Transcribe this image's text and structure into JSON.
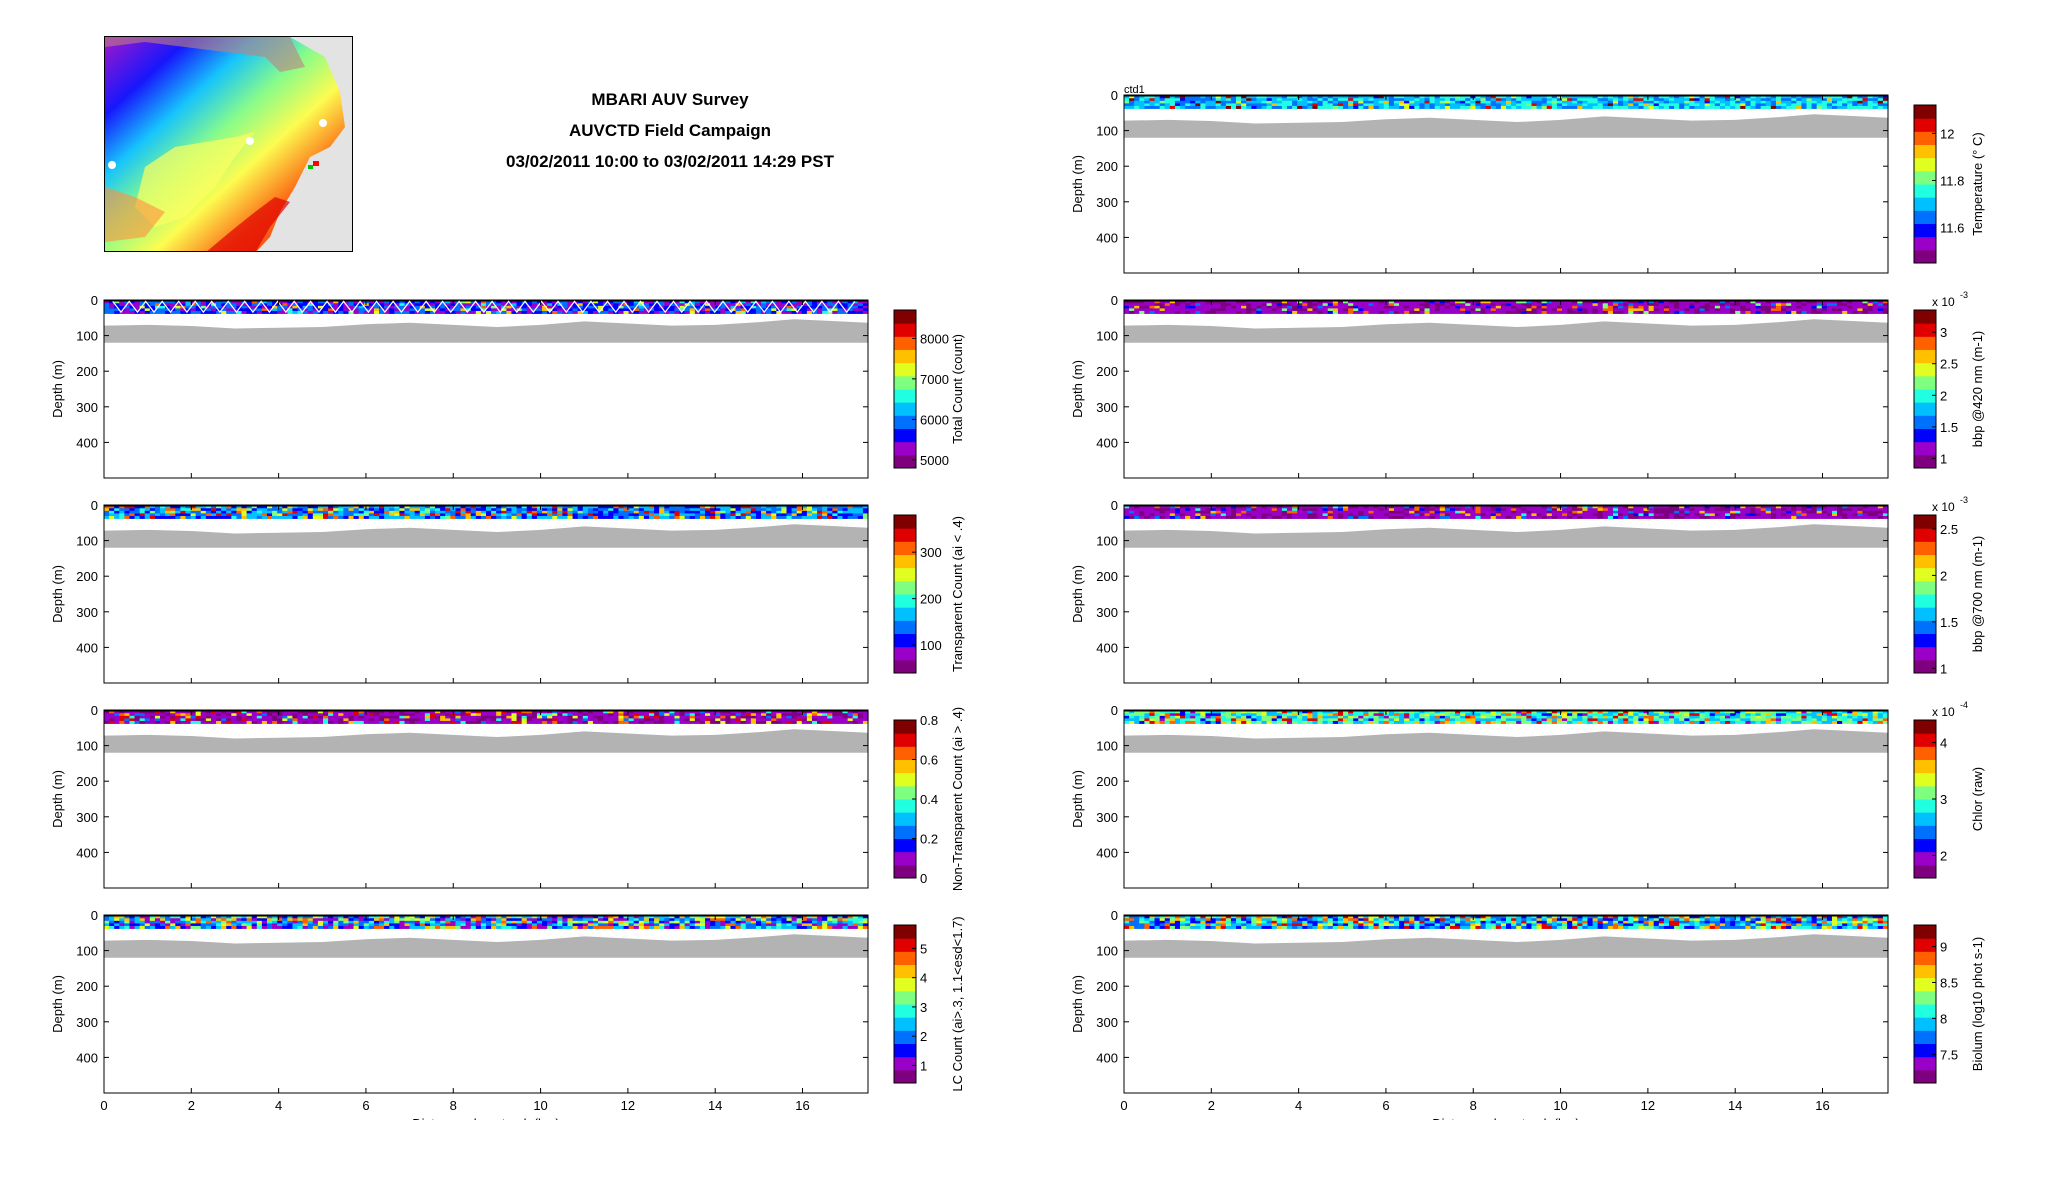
{
  "header": {
    "title_lines": [
      "MBARI AUV Survey",
      "AUVCTD Field Campaign",
      "03/02/2011 10:00 to 03/02/2011 14:29 PST"
    ]
  },
  "colors": {
    "terrain_fill": "#b3b3b3",
    "colormap_jet": [
      "#7f007f",
      "#9b00c8",
      "#0000ff",
      "#0070ff",
      "#00c0ff",
      "#20ffe0",
      "#7fff7f",
      "#e0ff20",
      "#ffc000",
      "#ff6000",
      "#e00000",
      "#800000"
    ]
  },
  "chart_data": [
    {
      "type": "heatmap",
      "panel": "left-1",
      "xlabel": "",
      "ylabel": "Depth (m)",
      "xlim": [
        0,
        17.5
      ],
      "ylim": [
        0,
        500
      ],
      "yticks": [
        0,
        100,
        200,
        300,
        400
      ],
      "xticks": [
        0,
        2,
        4,
        6,
        8,
        10,
        12,
        14,
        16
      ],
      "show_xticklabels": false,
      "colorbar": {
        "label": "Total Count (count)",
        "ticks": [
          "5000",
          "6000",
          "7000",
          "8000"
        ],
        "range": [
          4800,
          8700
        ],
        "exponent": ""
      },
      "trajectory_overlay": true
    },
    {
      "type": "heatmap",
      "panel": "left-2",
      "xlabel": "",
      "ylabel": "Depth (m)",
      "xlim": [
        0,
        17.5
      ],
      "ylim": [
        0,
        500
      ],
      "yticks": [
        0,
        100,
        200,
        300,
        400
      ],
      "xticks": [
        0,
        2,
        4,
        6,
        8,
        10,
        12,
        14,
        16
      ],
      "show_xticklabels": false,
      "colorbar": {
        "label": "Transparent Count (ai < .4)",
        "ticks": [
          "100",
          "200",
          "300"
        ],
        "range": [
          40,
          380
        ],
        "exponent": ""
      }
    },
    {
      "type": "heatmap",
      "panel": "left-3",
      "xlabel": "",
      "ylabel": "Depth (m)",
      "xlim": [
        0,
        17.5
      ],
      "ylim": [
        0,
        500
      ],
      "yticks": [
        0,
        100,
        200,
        300,
        400
      ],
      "xticks": [
        0,
        2,
        4,
        6,
        8,
        10,
        12,
        14,
        16
      ],
      "show_xticklabels": false,
      "colorbar": {
        "label": "Non-Transparent Count (ai > .4)",
        "ticks": [
          "0",
          "0.2",
          "0.4",
          "0.6",
          "0.8"
        ],
        "range": [
          0,
          0.8
        ],
        "exponent": ""
      }
    },
    {
      "type": "heatmap",
      "panel": "left-4",
      "xlabel": "Distance along track (km)",
      "ylabel": "Depth (m)",
      "xlim": [
        0,
        17.5
      ],
      "ylim": [
        0,
        500
      ],
      "yticks": [
        0,
        100,
        200,
        300,
        400
      ],
      "xticks": [
        0,
        2,
        4,
        6,
        8,
        10,
        12,
        14,
        16
      ],
      "show_xticklabels": true,
      "colorbar": {
        "label": "LC Count (ai>.3, 1.1<esd<1.7)",
        "ticks": [
          "1",
          "2",
          "3",
          "4",
          "5"
        ],
        "range": [
          0.4,
          5.8
        ],
        "exponent": ""
      }
    },
    {
      "type": "heatmap",
      "panel": "right-0",
      "xlabel": "",
      "ylabel": "Depth (m)",
      "annotation": "ctd1",
      "xlim": [
        0,
        17.5
      ],
      "ylim": [
        0,
        500
      ],
      "yticks": [
        0,
        100,
        200,
        300,
        400
      ],
      "xticks": [
        0,
        2,
        4,
        6,
        8,
        10,
        12,
        14,
        16
      ],
      "show_xticklabels": false,
      "colorbar": {
        "label": "Temperature (° C)",
        "ticks": [
          "11.6",
          "11.8",
          "12"
        ],
        "range": [
          11.45,
          12.12
        ],
        "exponent": ""
      }
    },
    {
      "type": "heatmap",
      "panel": "right-1",
      "xlabel": "",
      "ylabel": "Depth (m)",
      "xlim": [
        0,
        17.5
      ],
      "ylim": [
        0,
        500
      ],
      "yticks": [
        0,
        100,
        200,
        300,
        400
      ],
      "xticks": [
        0,
        2,
        4,
        6,
        8,
        10,
        12,
        14,
        16
      ],
      "show_xticklabels": false,
      "colorbar": {
        "label": "bbp @420 nm (m-1)",
        "ticks": [
          "1",
          "1.5",
          "2",
          "2.5",
          "3"
        ],
        "range": [
          0.85,
          3.35
        ],
        "exponent": "-3"
      }
    },
    {
      "type": "heatmap",
      "panel": "right-2",
      "xlabel": "",
      "ylabel": "Depth (m)",
      "xlim": [
        0,
        17.5
      ],
      "ylim": [
        0,
        500
      ],
      "yticks": [
        0,
        100,
        200,
        300,
        400
      ],
      "xticks": [
        0,
        2,
        4,
        6,
        8,
        10,
        12,
        14,
        16
      ],
      "show_xticklabels": false,
      "colorbar": {
        "label": "bbp @700 nm (m-1)",
        "ticks": [
          "1",
          "1.5",
          "2",
          "2.5"
        ],
        "range": [
          0.95,
          2.65
        ],
        "exponent": "-3"
      }
    },
    {
      "type": "heatmap",
      "panel": "right-3",
      "xlabel": "",
      "ylabel": "Depth (m)",
      "xlim": [
        0,
        17.5
      ],
      "ylim": [
        0,
        500
      ],
      "yticks": [
        0,
        100,
        200,
        300,
        400
      ],
      "xticks": [
        0,
        2,
        4,
        6,
        8,
        10,
        12,
        14,
        16
      ],
      "show_xticklabels": false,
      "colorbar": {
        "label": "Chlor (raw)",
        "ticks": [
          "2",
          "3",
          "4"
        ],
        "range": [
          1.6,
          4.4
        ],
        "exponent": "-4"
      }
    },
    {
      "type": "heatmap",
      "panel": "right-4",
      "xlabel": "Distance along track (km)",
      "ylabel": "Depth (m)",
      "xlim": [
        0,
        17.5
      ],
      "ylim": [
        0,
        500
      ],
      "yticks": [
        0,
        100,
        200,
        300,
        400
      ],
      "xticks": [
        0,
        2,
        4,
        6,
        8,
        10,
        12,
        14,
        16
      ],
      "show_xticklabels": true,
      "colorbar": {
        "label": "Biolum (log10 phot s-1)",
        "ticks": [
          "7.5",
          "8",
          "8.5",
          "9"
        ],
        "range": [
          7.1,
          9.3
        ],
        "exponent": ""
      }
    }
  ]
}
